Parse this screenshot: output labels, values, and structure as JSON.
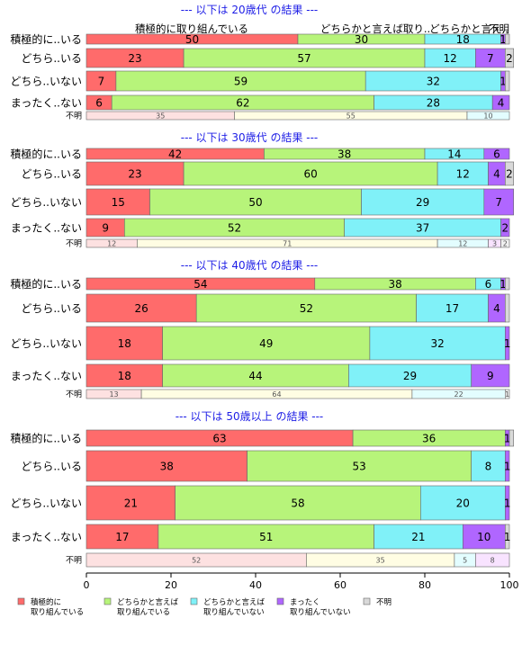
{
  "colors": {
    "strong_yes": "#ff6b6b",
    "weak_yes": "#b7f47a",
    "weak_no": "#80f1f8",
    "strong_no": "#b066ff",
    "unknown": "#d9d9d9",
    "section_title": "#1e1ee6"
  },
  "chart_data": {
    "type": "bar",
    "orientation": "horizontal",
    "stacked": true,
    "xlim": [
      0,
      100
    ],
    "x_ticks": [
      0,
      20,
      40,
      60,
      80,
      100
    ],
    "legend_position": "bottom",
    "legend": [
      {
        "key": "strong_yes",
        "lines": [
          "積極的に",
          "取り組んでいる"
        ]
      },
      {
        "key": "weak_yes",
        "lines": [
          "どちらかと言えば",
          "取り組んでいる"
        ]
      },
      {
        "key": "weak_no",
        "lines": [
          "どちらかと言えば",
          "取り組んでいない"
        ]
      },
      {
        "key": "strong_no",
        "lines": [
          "まったく",
          "取り組んでいない"
        ]
      },
      {
        "key": "unknown",
        "lines": [
          "不明"
        ]
      }
    ],
    "top_labels": [
      "積極的に取り組んでいる",
      "どちらかと言えば取り..",
      "どちらかと言え..",
      "不明"
    ],
    "series_keys": [
      "strong_yes",
      "weak_yes",
      "weak_no",
      "strong_no",
      "unknown"
    ],
    "panels": [
      {
        "title": "--- 以下は 20歳代 の結果 ---",
        "rows": [
          {
            "label": "積極的に..いる",
            "values": [
              50,
              30,
              18,
              1,
              1
            ],
            "shown": [
              "50",
              "30",
              "18",
              "1",
              ""
            ]
          },
          {
            "label": "どちら..いる",
            "values": [
              23,
              57,
              12,
              7,
              2
            ],
            "shown": [
              "23",
              "57",
              "12",
              "7",
              "2"
            ]
          },
          {
            "label": "どちら..いない",
            "values": [
              7,
              59,
              32,
              1,
              1
            ],
            "shown": [
              "7",
              "59",
              "32",
              "1",
              ""
            ]
          },
          {
            "label": "まったく..ない",
            "values": [
              6,
              62,
              28,
              4,
              0
            ],
            "shown": [
              "6",
              "62",
              "28",
              "4",
              ""
            ]
          }
        ],
        "unknown_row": {
          "label": "不明",
          "values": [
            35,
            55,
            10,
            0,
            0
          ],
          "shown": [
            "35",
            "55",
            "10",
            "",
            ""
          ]
        }
      },
      {
        "title": "--- 以下は 30歳代 の結果 ---",
        "rows": [
          {
            "label": "積極的に..いる",
            "values": [
              42,
              38,
              14,
              6,
              0
            ],
            "shown": [
              "42",
              "38",
              "14",
              "6",
              ""
            ]
          },
          {
            "label": "どちら..いる",
            "values": [
              23,
              60,
              12,
              4,
              2
            ],
            "shown": [
              "23",
              "60",
              "12",
              "4",
              "2"
            ]
          },
          {
            "label": "どちら..いない",
            "values": [
              15,
              50,
              29,
              7,
              0
            ],
            "shown": [
              "15",
              "50",
              "29",
              "7",
              ""
            ]
          },
          {
            "label": "まったく..ない",
            "values": [
              9,
              52,
              37,
              2,
              0
            ],
            "shown": [
              "9",
              "52",
              "37",
              "2",
              ""
            ]
          }
        ],
        "unknown_row": {
          "label": "不明",
          "values": [
            12,
            71,
            12,
            3,
            2
          ],
          "shown": [
            "12",
            "71",
            "12",
            "3",
            "2"
          ]
        }
      },
      {
        "title": "--- 以下は 40歳代 の結果 ---",
        "rows": [
          {
            "label": "積極的に..いる",
            "values": [
              54,
              38,
              6,
              1,
              1
            ],
            "shown": [
              "54",
              "38",
              "6",
              "1",
              ""
            ]
          },
          {
            "label": "どちら..いる",
            "values": [
              26,
              52,
              17,
              4,
              1
            ],
            "shown": [
              "26",
              "52",
              "17",
              "4",
              ""
            ]
          },
          {
            "label": "どちら..いない",
            "values": [
              18,
              49,
              32,
              1,
              0
            ],
            "shown": [
              "18",
              "49",
              "32",
              "1",
              ""
            ]
          },
          {
            "label": "まったく..ない",
            "values": [
              18,
              44,
              29,
              9,
              0
            ],
            "shown": [
              "18",
              "44",
              "29",
              "9",
              ""
            ]
          }
        ],
        "unknown_row": {
          "label": "不明",
          "values": [
            13,
            64,
            22,
            0,
            1
          ],
          "shown": [
            "13",
            "64",
            "22",
            "",
            "1"
          ]
        }
      },
      {
        "title": "--- 以下は 50歳以上 の結果 ---",
        "rows": [
          {
            "label": "積極的に..いる",
            "values": [
              63,
              36,
              0,
              1,
              1
            ],
            "shown": [
              "63",
              "36",
              "",
              "1",
              ""
            ]
          },
          {
            "label": "どちら..いる",
            "values": [
              38,
              53,
              8,
              1,
              0
            ],
            "shown": [
              "38",
              "53",
              "8",
              "1",
              ""
            ]
          },
          {
            "label": "どちら..いない",
            "values": [
              21,
              58,
              20,
              1,
              0
            ],
            "shown": [
              "21",
              "58",
              "20",
              "1",
              ""
            ]
          },
          {
            "label": "まったく..ない",
            "values": [
              17,
              51,
              21,
              10,
              1
            ],
            "shown": [
              "17",
              "51",
              "21",
              "10",
              "1"
            ]
          }
        ],
        "unknown_row": {
          "label": "不明",
          "values": [
            52,
            35,
            5,
            8,
            0
          ],
          "shown": [
            "52",
            "35",
            "5",
            "8",
            ""
          ]
        }
      }
    ]
  }
}
